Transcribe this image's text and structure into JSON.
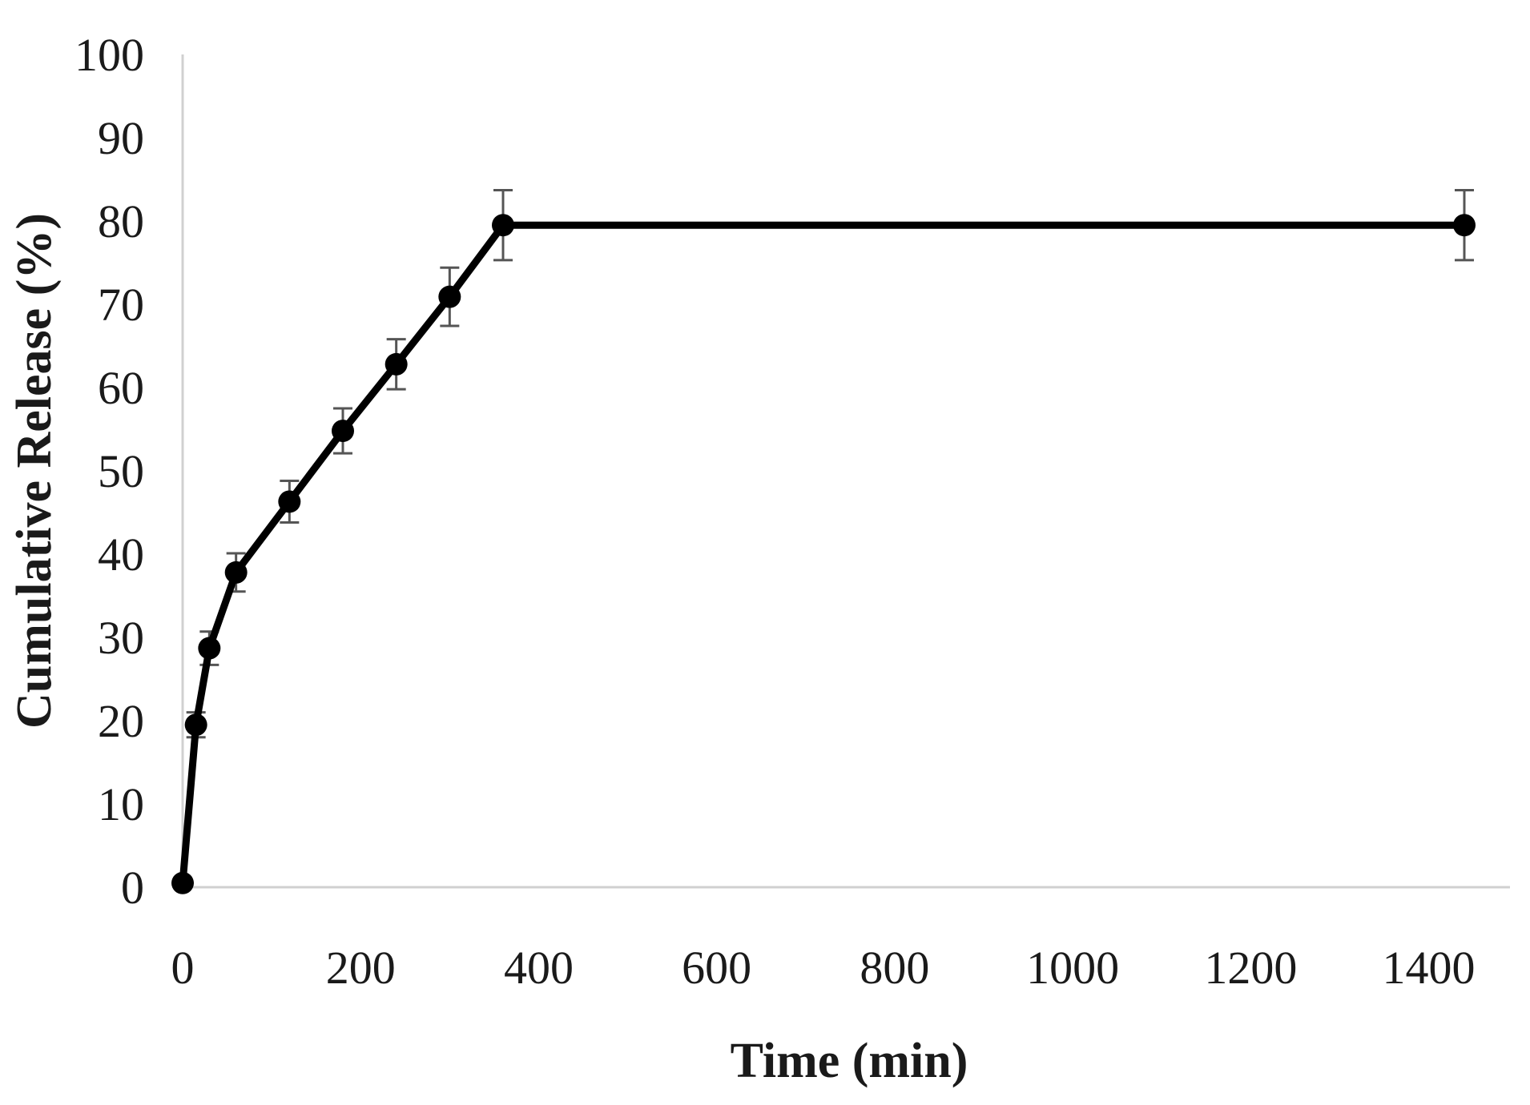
{
  "chart_data": {
    "type": "line",
    "title": "",
    "xlabel": "Time (min)",
    "ylabel": "Cumulative Release (%)",
    "xlim": [
      0,
      1500
    ],
    "ylim": [
      0,
      100
    ],
    "x_ticks": [
      0,
      200,
      400,
      600,
      800,
      1000,
      1200,
      1400
    ],
    "y_ticks": [
      0,
      10,
      20,
      30,
      40,
      50,
      60,
      70,
      80,
      90,
      100
    ],
    "grid": false,
    "legend": "none",
    "series": [
      {
        "x": [
          0,
          15,
          30,
          60,
          120,
          180,
          240,
          300,
          360,
          1440
        ],
        "y": [
          0.5,
          19.5,
          28.7,
          37.8,
          46.3,
          54.8,
          62.8,
          70.9,
          79.5,
          79.5
        ],
        "error": [
          0,
          1.5,
          2.0,
          2.3,
          2.5,
          2.7,
          3.0,
          3.5,
          4.2,
          4.2
        ],
        "color": "#000000"
      }
    ]
  }
}
